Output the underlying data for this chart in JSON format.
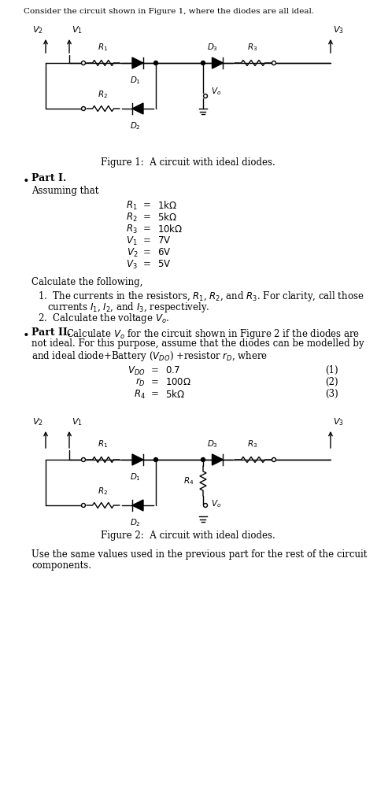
{
  "intro_text": "Consider the circuit shown in Figure 1, where the diodes are all ideal.",
  "fig1_caption": "Figure 1:  A circuit with ideal diodes.",
  "fig2_caption": "Figure 2:  A circuit with ideal diodes.",
  "bg_color": "#ffffff",
  "text_color": "#000000",
  "vals": [
    [
      "$R_1$",
      "=",
      "$1\\mathrm{k}\\Omega$"
    ],
    [
      "$R_2$",
      "=",
      "$5\\mathrm{k}\\Omega$"
    ],
    [
      "$R_3$",
      "=",
      "$10\\mathrm{k}\\Omega$"
    ],
    [
      "$V_1$",
      "=",
      "$7\\mathrm{V}$"
    ],
    [
      "$V_2$",
      "=",
      "$6\\mathrm{V}$"
    ],
    [
      "$V_3$",
      "=",
      "$5\\mathrm{V}$"
    ]
  ],
  "eq_rows": [
    [
      "$V_{DO}$",
      "=",
      "$0.7$",
      "(1)"
    ],
    [
      "$r_D$",
      "=",
      "$100\\Omega$",
      "(2)"
    ],
    [
      "$R_4$",
      "=",
      "$5\\mathrm{k}\\Omega$",
      "(3)"
    ]
  ]
}
